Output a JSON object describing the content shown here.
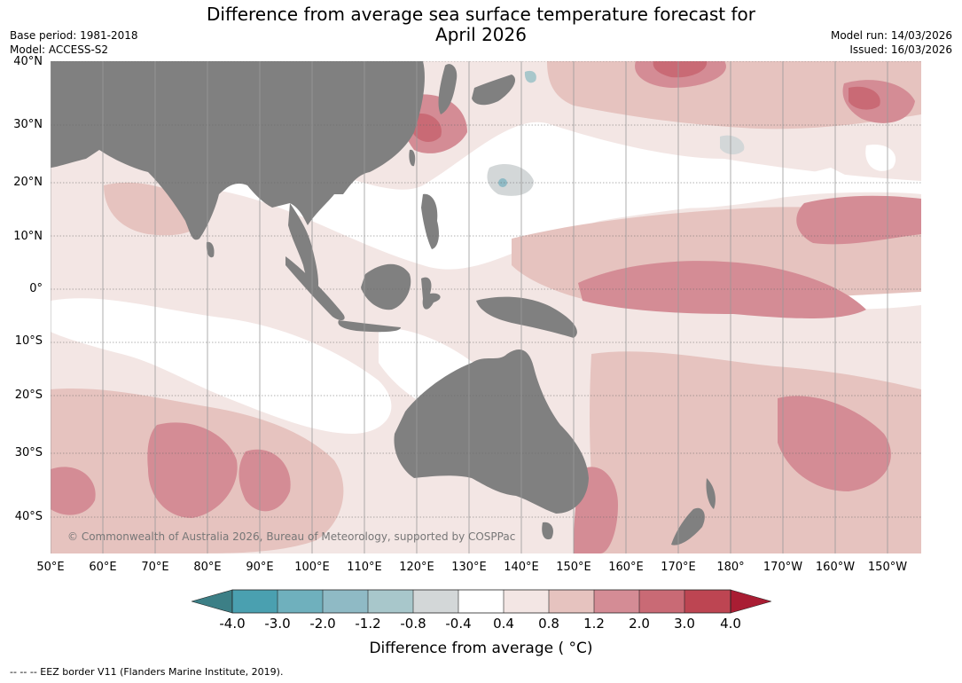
{
  "title": {
    "line1": "Difference from average sea surface temperature forecast for",
    "line2": "April 2026"
  },
  "meta": {
    "base_period": "Base period: 1981-2018",
    "model": "Model: ACCESS-S2",
    "model_run": "Model run: 14/03/2026",
    "issued": "Issued: 16/03/2026"
  },
  "map": {
    "lat_labels": [
      "40°N",
      "30°N",
      "20°N",
      "10°N",
      "0°",
      "10°S",
      "20°S",
      "30°S",
      "40°S"
    ],
    "lon_labels": [
      "50°E",
      "60°E",
      "70°E",
      "80°E",
      "90°E",
      "100°E",
      "110°E",
      "120°E",
      "130°E",
      "140°E",
      "150°E",
      "160°E",
      "170°E",
      "180°",
      "170°W",
      "160°W",
      "150°W"
    ],
    "copyright": "© Commonwealth of Australia 2026, Bureau of Meteorology, supported by COSPPac",
    "land_color": "#808080"
  },
  "colorbar": {
    "labels": [
      "-4.0",
      "-3.0",
      "-2.0",
      "-1.2",
      "-0.8",
      "-0.4",
      "0.4",
      "0.8",
      "1.2",
      "2.0",
      "3.0",
      "4.0"
    ],
    "colors": [
      "#3c7f86",
      "#4aa0b0",
      "#6fb0bd",
      "#8fbac5",
      "#a8c7cb",
      "#d3d7d8",
      "#ffffff",
      "#f3e6e4",
      "#e6c3bf",
      "#d48c95",
      "#c96a75",
      "#bd4552",
      "#a91d33"
    ],
    "title": "Difference from average ( °C)"
  },
  "footnote": "--  --  -- EEZ border V11 (Flanders Marine Institute, 2019)."
}
